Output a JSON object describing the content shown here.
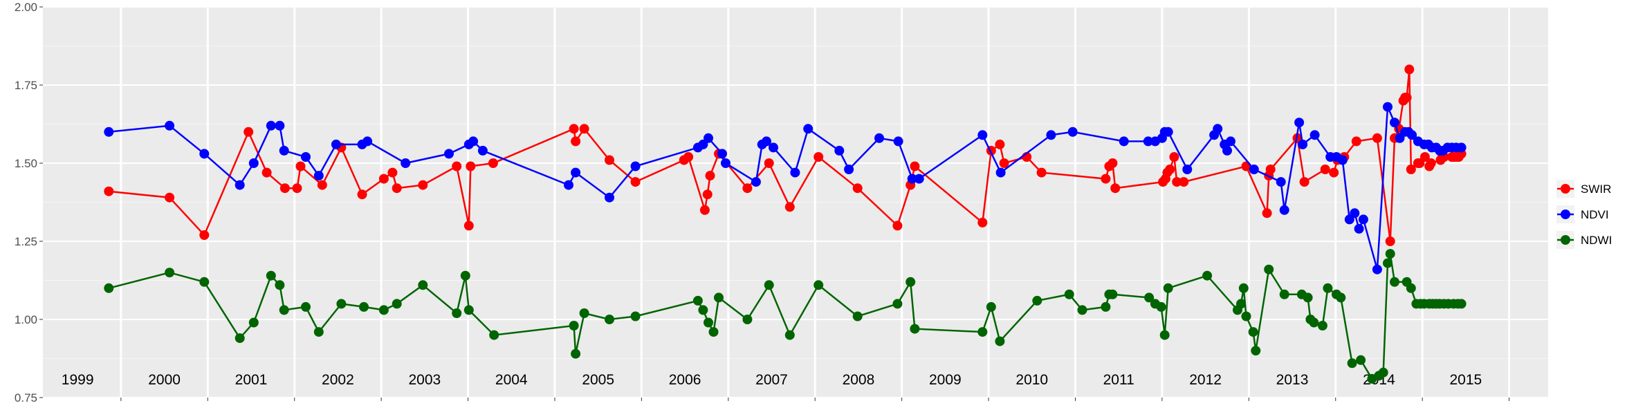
{
  "chart_data": {
    "type": "line",
    "ylim": [
      0.75,
      2.0
    ],
    "xlim": [
      1998.6,
      2015.95
    ],
    "y_ticks": [
      "0.75",
      "1.00",
      "1.25",
      "1.50",
      "1.75",
      "2.00"
    ],
    "year_labels": [
      "1999",
      "2000",
      "2001",
      "2002",
      "2003",
      "2004",
      "2005",
      "2006",
      "2007",
      "2008",
      "2009",
      "2010",
      "2011",
      "2012",
      "2013",
      "2014",
      "2015"
    ],
    "year_centers": [
      1999,
      2000,
      2001,
      2002,
      2003,
      2004,
      2005,
      2006,
      2007,
      2008,
      2009,
      2010,
      2011,
      2012,
      2013,
      2014,
      2015
    ],
    "grid": true,
    "legend_position": "right",
    "series": [
      {
        "name": "SWIR",
        "color": "#ff0000",
        "x": [
          1999.36,
          2000.06,
          2000.46,
          2000.97,
          2001.18,
          2001.39,
          2001.53,
          2001.57,
          2001.82,
          2002.04,
          2002.28,
          2002.53,
          2002.63,
          2002.68,
          2002.98,
          2003.37,
          2003.51,
          2003.53,
          2003.79,
          2004.72,
          2004.74,
          2004.84,
          2005.13,
          2005.43,
          2005.99,
          2006.04,
          2006.23,
          2006.26,
          2006.29,
          2006.39,
          2006.72,
          2006.97,
          2007.21,
          2007.54,
          2007.99,
          2008.45,
          2008.6,
          2008.65,
          2009.43,
          2009.53,
          2009.63,
          2009.68,
          2009.94,
          2010.11,
          2010.85,
          2010.89,
          2010.93,
          2010.96,
          2011.51,
          2011.54,
          2011.56,
          2011.59,
          2011.64,
          2011.67,
          2011.75,
          2012.47,
          2012.71,
          2012.73,
          2012.75,
          2013.06,
          2013.14,
          2013.38,
          2013.48,
          2013.52,
          2013.6,
          2013.74,
          2013.98,
          2014.13,
          2014.18,
          2014.23,
          2014.28,
          2014.3,
          2014.32,
          2014.35,
          2014.37,
          2014.45,
          2014.47,
          2014.53,
          2014.58,
          2014.6,
          2014.71,
          2014.73,
          2014.75,
          2014.84,
          2014.86,
          2014.89,
          2014.92,
          2014.95
        ],
        "y": [
          1.41,
          1.39,
          1.27,
          1.6,
          1.47,
          1.42,
          1.42,
          1.49,
          1.43,
          1.55,
          1.4,
          1.45,
          1.47,
          1.42,
          1.43,
          1.49,
          1.3,
          1.49,
          1.5,
          1.61,
          1.57,
          1.61,
          1.51,
          1.44,
          1.51,
          1.52,
          1.35,
          1.4,
          1.46,
          1.53,
          1.42,
          1.5,
          1.36,
          1.52,
          1.42,
          1.3,
          1.43,
          1.49,
          1.31,
          1.54,
          1.56,
          1.5,
          1.52,
          1.47,
          1.45,
          1.49,
          1.5,
          1.42,
          1.44,
          1.45,
          1.47,
          1.48,
          1.52,
          1.44,
          1.44,
          1.49,
          1.34,
          1.46,
          1.48,
          1.58,
          1.44,
          1.48,
          1.47,
          1.51,
          1.52,
          1.57,
          1.58,
          1.25,
          1.58,
          1.61,
          1.7,
          1.71,
          1.71,
          1.8,
          1.48,
          1.5,
          1.5,
          1.52,
          1.49,
          1.5,
          1.51,
          1.52,
          1.52,
          1.52,
          1.52,
          1.52,
          1.52,
          1.53
        ]
      },
      {
        "name": "NDVI",
        "color": "#0000ff",
        "x": [
          1999.36,
          2000.06,
          2000.46,
          2000.87,
          2001.03,
          2001.23,
          2001.33,
          2001.38,
          2001.63,
          2001.78,
          2001.98,
          2002.28,
          2002.34,
          2002.78,
          2003.28,
          2003.51,
          2003.56,
          2003.67,
          2004.66,
          2004.74,
          2005.13,
          2005.43,
          2006.15,
          2006.21,
          2006.27,
          2006.43,
          2006.47,
          2006.82,
          2006.89,
          2006.94,
          2007.02,
          2007.27,
          2007.42,
          2007.78,
          2007.89,
          2008.24,
          2008.46,
          2008.62,
          2008.7,
          2009.43,
          2009.64,
          2010.22,
          2010.47,
          2011.06,
          2011.34,
          2011.42,
          2011.5,
          2011.53,
          2011.57,
          2011.79,
          2012.1,
          2012.14,
          2012.22,
          2012.25,
          2012.29,
          2012.56,
          2012.87,
          2012.91,
          2013.08,
          2013.12,
          2013.26,
          2013.44,
          2013.51,
          2013.58,
          2013.66,
          2013.72,
          2013.77,
          2013.82,
          2013.98,
          2014.1,
          2014.18,
          2014.24,
          2014.3,
          2014.34,
          2014.38,
          2014.45,
          2014.52,
          2014.57,
          2014.61,
          2014.66,
          2014.7,
          2014.74,
          2014.79,
          2014.84,
          2014.89,
          2014.95
        ],
        "y": [
          1.6,
          1.62,
          1.53,
          1.43,
          1.5,
          1.62,
          1.62,
          1.54,
          1.52,
          1.46,
          1.56,
          1.56,
          1.57,
          1.5,
          1.53,
          1.56,
          1.57,
          1.54,
          1.43,
          1.47,
          1.39,
          1.49,
          1.55,
          1.56,
          1.58,
          1.53,
          1.5,
          1.44,
          1.56,
          1.57,
          1.55,
          1.47,
          1.61,
          1.54,
          1.48,
          1.58,
          1.57,
          1.45,
          1.45,
          1.59,
          1.47,
          1.59,
          1.6,
          1.57,
          1.57,
          1.57,
          1.58,
          1.6,
          1.6,
          1.48,
          1.59,
          1.61,
          1.56,
          1.54,
          1.57,
          1.48,
          1.44,
          1.35,
          1.63,
          1.56,
          1.59,
          1.52,
          1.52,
          1.51,
          1.32,
          1.34,
          1.29,
          1.32,
          1.16,
          1.68,
          1.63,
          1.58,
          1.6,
          1.6,
          1.59,
          1.57,
          1.56,
          1.56,
          1.55,
          1.55,
          1.54,
          1.54,
          1.55,
          1.55,
          1.55,
          1.55
        ]
      },
      {
        "name": "NDWI",
        "color": "#006400",
        "x": [
          1999.36,
          2000.06,
          2000.46,
          2000.87,
          2001.03,
          2001.23,
          2001.33,
          2001.38,
          2001.63,
          2001.78,
          2002.04,
          2002.3,
          2002.53,
          2002.68,
          2002.98,
          2003.37,
          2003.47,
          2003.51,
          2003.8,
          2004.72,
          2004.74,
          2004.84,
          2005.13,
          2005.43,
          2006.15,
          2006.21,
          2006.27,
          2006.33,
          2006.39,
          2006.72,
          2006.97,
          2007.21,
          2007.54,
          2007.99,
          2008.45,
          2008.6,
          2008.65,
          2009.43,
          2009.53,
          2009.63,
          2010.06,
          2010.43,
          2010.58,
          2010.85,
          2010.89,
          2010.93,
          2011.35,
          2011.42,
          2011.49,
          2011.53,
          2011.57,
          2012.02,
          2012.37,
          2012.41,
          2012.44,
          2012.47,
          2012.55,
          2012.58,
          2012.73,
          2012.91,
          2013.11,
          2013.18,
          2013.21,
          2013.25,
          2013.35,
          2013.41,
          2013.51,
          2013.56,
          2013.69,
          2013.79,
          2013.92,
          2014.0,
          2014.05,
          2014.1,
          2014.13,
          2014.18,
          2014.32,
          2014.37,
          2014.43,
          2014.48,
          2014.52,
          2014.58,
          2014.62,
          2014.66,
          2014.7,
          2014.75,
          2014.8,
          2014.86,
          2014.91,
          2014.95
        ],
        "y": [
          1.1,
          1.15,
          1.12,
          0.94,
          0.99,
          1.14,
          1.11,
          1.03,
          1.04,
          0.96,
          1.05,
          1.04,
          1.03,
          1.05,
          1.11,
          1.02,
          1.14,
          1.03,
          0.95,
          0.98,
          0.89,
          1.02,
          1.0,
          1.01,
          1.06,
          1.03,
          0.99,
          0.96,
          1.07,
          1.0,
          1.11,
          0.95,
          1.11,
          1.01,
          1.05,
          1.12,
          0.97,
          0.96,
          1.04,
          0.93,
          1.06,
          1.08,
          1.03,
          1.04,
          1.08,
          1.08,
          1.07,
          1.05,
          1.04,
          0.95,
          1.1,
          1.14,
          1.03,
          1.05,
          1.1,
          1.01,
          0.96,
          0.9,
          1.16,
          1.08,
          1.08,
          1.07,
          1.0,
          0.99,
          0.98,
          1.1,
          1.08,
          1.07,
          0.86,
          0.87,
          0.81,
          0.82,
          0.83,
          1.18,
          1.21,
          1.12,
          1.12,
          1.1,
          1.05,
          1.05,
          1.05,
          1.05,
          1.05,
          1.05,
          1.05,
          1.05,
          1.05,
          1.05,
          1.05,
          1.05
        ]
      }
    ]
  }
}
